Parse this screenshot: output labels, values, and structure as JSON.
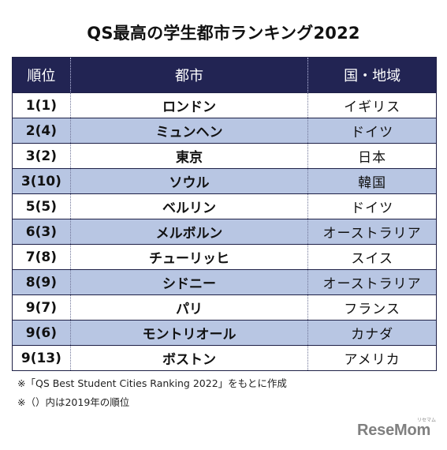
{
  "title": "QS最高の学生都市ランキング2022",
  "table": {
    "headers": [
      "順位",
      "都市",
      "国・地域"
    ],
    "rows": [
      {
        "rank": "1(1)",
        "city": "ロンドン",
        "country": "イギリス"
      },
      {
        "rank": "2(4)",
        "city": "ミュンヘン",
        "country": "ドイツ"
      },
      {
        "rank": "3(2)",
        "city": "東京",
        "country": "日本"
      },
      {
        "rank": "3(10)",
        "city": "ソウル",
        "country": "韓国"
      },
      {
        "rank": "5(5)",
        "city": "ベルリン",
        "country": "ドイツ"
      },
      {
        "rank": "6(3)",
        "city": "メルボルン",
        "country": "オーストラリア"
      },
      {
        "rank": "7(8)",
        "city": "チューリッヒ",
        "country": "スイス"
      },
      {
        "rank": "8(9)",
        "city": "シドニー",
        "country": "オーストラリア"
      },
      {
        "rank": "9(7)",
        "city": "パリ",
        "country": "フランス"
      },
      {
        "rank": "9(6)",
        "city": "モントリオール",
        "country": "カナダ"
      },
      {
        "rank": "9(13)",
        "city": "ボストン",
        "country": "アメリカ"
      }
    ]
  },
  "notes": [
    "※「QS Best Student Cities Ranking 2022」をもとに作成",
    "※（）内は2019年の順位"
  ],
  "logo": {
    "text": "ReseMom",
    "ruby": "リセマム"
  },
  "colors": {
    "header_bg": "#222453",
    "stripe": "#b8c6e3",
    "border": "#1f2147"
  }
}
